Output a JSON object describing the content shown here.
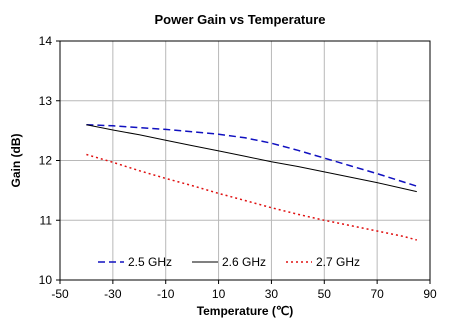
{
  "chart_data": {
    "type": "line",
    "title": "Power Gain vs Temperature",
    "xlabel": "Temperature (℃)",
    "ylabel": "Gain (dB)",
    "xlim": [
      -50,
      90
    ],
    "ylim": [
      10,
      14
    ],
    "xticks": [
      -50,
      -30,
      -10,
      10,
      30,
      50,
      70,
      90
    ],
    "yticks": [
      10,
      11,
      12,
      13,
      14
    ],
    "grid": true,
    "legend_position": "bottom",
    "series": [
      {
        "name": "2.5 GHz",
        "color": "#1010c0",
        "dash": "dashed",
        "x": [
          -40,
          -30,
          -20,
          -10,
          0,
          10,
          20,
          30,
          40,
          50,
          60,
          70,
          80,
          85
        ],
        "y": [
          12.6,
          12.58,
          12.55,
          12.52,
          12.48,
          12.44,
          12.38,
          12.29,
          12.17,
          12.04,
          11.91,
          11.78,
          11.64,
          11.57
        ]
      },
      {
        "name": "2.6 GHz",
        "color": "#000000",
        "dash": "solid",
        "x": [
          -40,
          -30,
          -20,
          -10,
          0,
          10,
          20,
          30,
          40,
          50,
          60,
          70,
          80,
          85
        ],
        "y": [
          12.6,
          12.51,
          12.43,
          12.34,
          12.25,
          12.16,
          12.07,
          11.98,
          11.9,
          11.81,
          11.72,
          11.63,
          11.53,
          11.48
        ]
      },
      {
        "name": "2.7 GHz",
        "color": "#e01010",
        "dash": "dotted",
        "x": [
          -40,
          -30,
          -20,
          -10,
          0,
          10,
          20,
          30,
          40,
          50,
          60,
          70,
          80,
          85
        ],
        "y": [
          12.1,
          11.97,
          11.83,
          11.7,
          11.58,
          11.45,
          11.33,
          11.21,
          11.1,
          11.0,
          10.91,
          10.82,
          10.73,
          10.67
        ]
      }
    ]
  }
}
